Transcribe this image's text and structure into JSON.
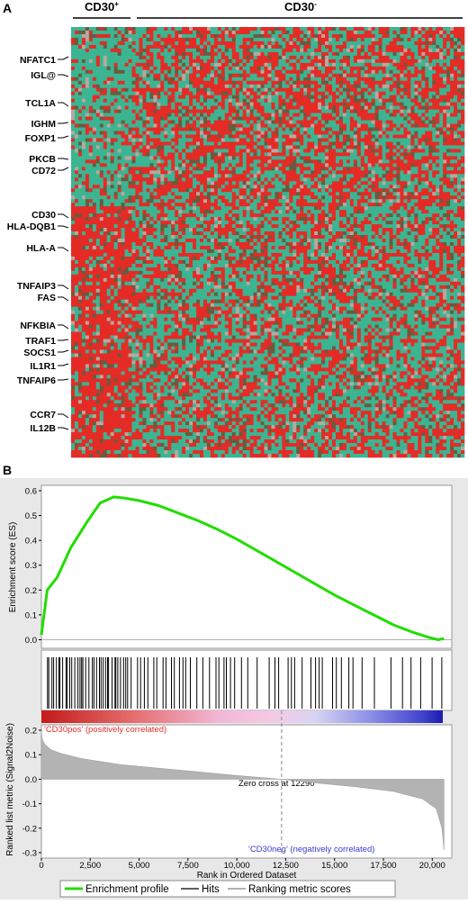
{
  "panel_a": {
    "label": "A",
    "groups": {
      "pos": {
        "label": "CD30",
        "superscript": "+"
      },
      "neg": {
        "label": "CD30",
        "superscript": "-"
      }
    },
    "genes": [
      "NFATC1",
      "IGL@",
      "TCL1A",
      "IGHM",
      "FOXP1",
      "PKCB",
      "CD72",
      "CD30",
      "HLA-DQB1",
      "HLA-A",
      "TNFAIP3",
      "FAS",
      "NFKBIA",
      "TRAF1",
      "SOCS1",
      "IL1R1",
      "TNFAIP6",
      "CCR7",
      "IL12B"
    ],
    "colors": {
      "red": "#e52b26",
      "green": "#3bb592",
      "dark": "#6b5a3e",
      "grey": "#b8a8a0"
    }
  },
  "panel_b": {
    "label": "B",
    "es_ylabel": "Enrichment score (ES)",
    "metric_ylabel": "Ranked list metric (Signal2Noise)",
    "xlabel": "Rank in Ordered Dataset",
    "pos_label": "'CD30pos' (positively correlated)",
    "neg_label": "'CD30neg' (negatively correlated)",
    "zero_cross_text": "Zero cross at 12290",
    "legend": [
      {
        "label": "Enrichment profile",
        "color": "#22dd00"
      },
      {
        "label": "Hits",
        "color": "#000000"
      },
      {
        "label": "Ranking metric scores",
        "color": "#b0b0b0"
      }
    ]
  },
  "chart_data": [
    {
      "type": "heatmap",
      "title": "",
      "columns_groups": [
        "CD30+",
        "CD30-"
      ],
      "row_labels": [
        "NFATC1",
        "IGL@",
        "TCL1A",
        "IGHM",
        "FOXP1",
        "PKCB",
        "CD72",
        "CD30",
        "HLA-DQB1",
        "HLA-A",
        "TNFAIP3",
        "FAS",
        "NFKBIA",
        "TRAF1",
        "SOCS1",
        "IL1R1",
        "TNFAIP6",
        "CCR7",
        "IL12B"
      ]
    },
    {
      "type": "line",
      "name": "Enrichment profile",
      "xlabel": "Rank in Ordered Dataset",
      "ylabel": "Enrichment score (ES)",
      "xlim": [
        0,
        21000
      ],
      "ylim": [
        -0.02,
        0.6
      ],
      "yticks": [
        0.0,
        0.1,
        0.2,
        0.3,
        0.4,
        0.5,
        0.6
      ],
      "x": [
        0,
        300,
        800,
        1500,
        2300,
        3000,
        3700,
        4300,
        5000,
        6000,
        7000,
        8000,
        9000,
        10000,
        11000,
        12000,
        13000,
        14000,
        15000,
        16000,
        17000,
        18000,
        19000,
        19800,
        20300,
        20600
      ],
      "y": [
        0.02,
        0.2,
        0.25,
        0.37,
        0.47,
        0.55,
        0.575,
        0.57,
        0.56,
        0.54,
        0.51,
        0.48,
        0.445,
        0.405,
        0.36,
        0.315,
        0.27,
        0.225,
        0.18,
        0.14,
        0.1,
        0.06,
        0.03,
        0.01,
        0.0,
        0.005
      ]
    },
    {
      "type": "area",
      "name": "Ranking metric scores",
      "xlabel": "Rank in Ordered Dataset",
      "ylabel": "Ranked list metric (Signal2Noise)",
      "xlim": [
        0,
        21000
      ],
      "ylim": [
        -0.3,
        0.2
      ],
      "xticks": [
        0,
        2500,
        5000,
        7500,
        10000,
        12500,
        15000,
        17500,
        20000
      ],
      "xtick_labels": [
        "0",
        "2,500",
        "5,000",
        "7,500",
        "10,000",
        "12,500",
        "15,000",
        "17,500",
        "20,000"
      ],
      "yticks": [
        -0.3,
        -0.2,
        -0.1,
        0.0,
        0.1,
        0.2
      ],
      "zero_cross": 12290,
      "x": [
        0,
        50,
        200,
        500,
        1000,
        2000,
        4000,
        6000,
        8000,
        10000,
        12290,
        14000,
        16000,
        18000,
        19500,
        20200,
        20500,
        20600
      ],
      "y": [
        0.19,
        0.16,
        0.14,
        0.12,
        0.105,
        0.085,
        0.06,
        0.045,
        0.03,
        0.015,
        0.0,
        -0.015,
        -0.03,
        -0.05,
        -0.08,
        -0.12,
        -0.2,
        -0.29
      ]
    }
  ]
}
